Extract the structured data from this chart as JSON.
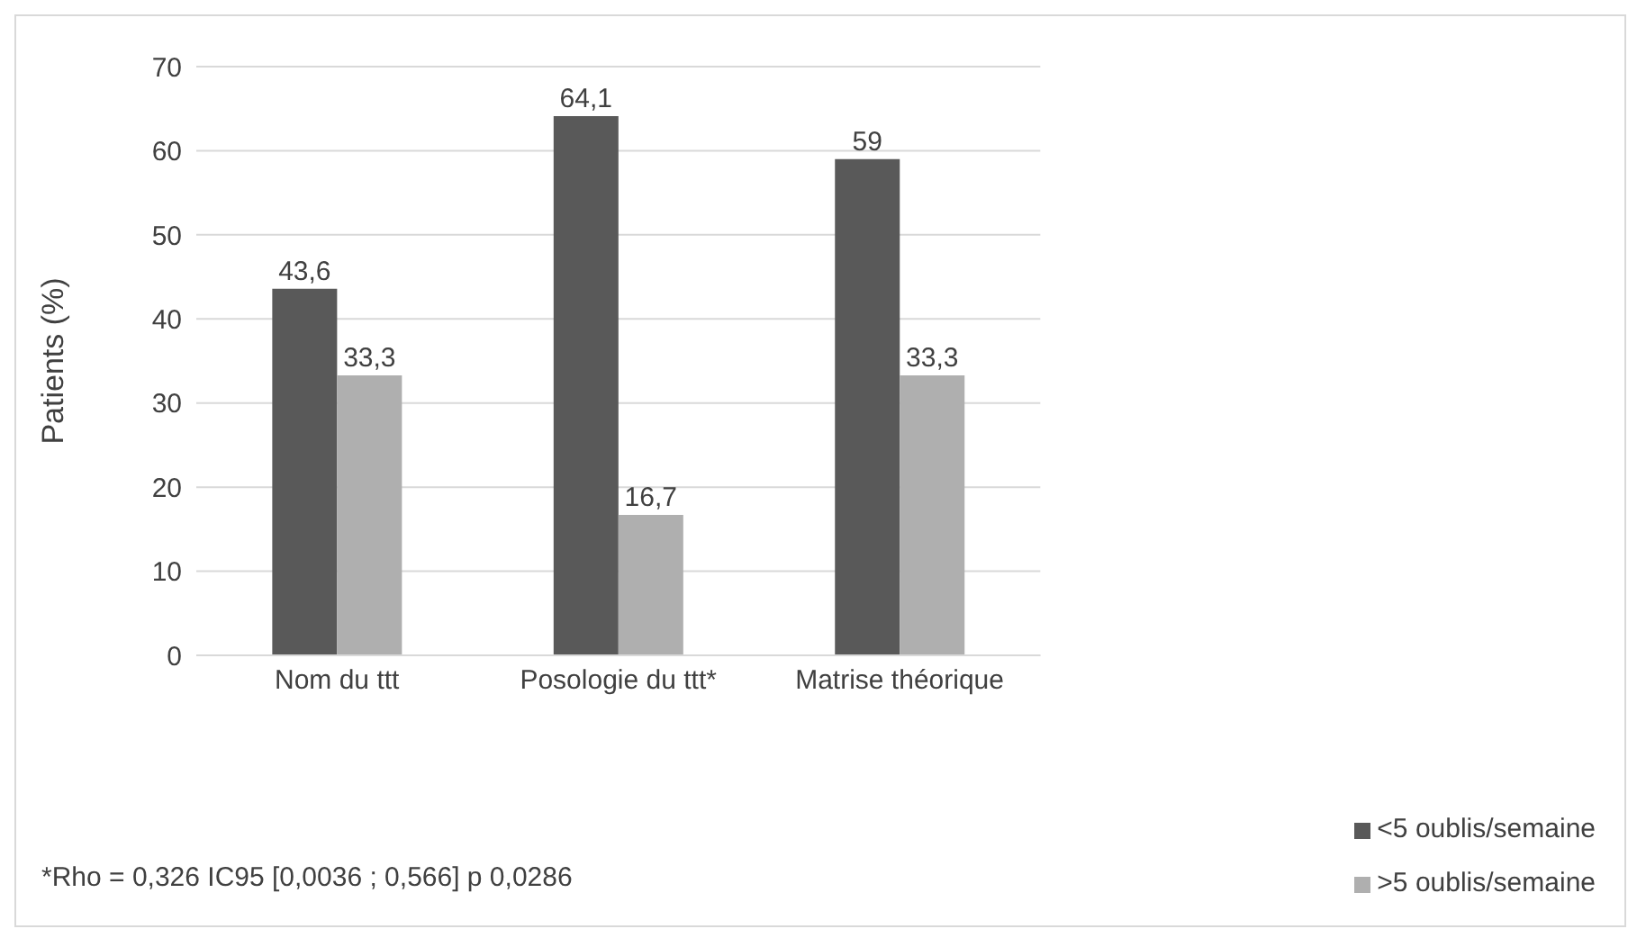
{
  "chart_data": {
    "type": "bar",
    "categories": [
      "Nom du ttt",
      "Posologie du ttt*",
      "Matrise théorique"
    ],
    "ylabel": "Patients (%)",
    "ylim": [
      0,
      70
    ],
    "yticks": [
      0,
      10,
      20,
      30,
      40,
      50,
      60,
      70
    ],
    "grid": "y",
    "legend": "bottom right",
    "series": [
      {
        "name": "<5 oublis/semaine",
        "color": "#595959",
        "values": [
          43.6,
          64.1,
          59
        ],
        "value_labels": [
          "43,6",
          "64,1",
          "59"
        ]
      },
      {
        "name": ">5 oublis/semaine",
        "color": "#afafaf",
        "values": [
          33.3,
          16.7,
          33.3
        ],
        "value_labels": [
          "33,3",
          "16,7",
          "33,3"
        ]
      }
    ],
    "annotations": [
      "*Rho = 0,326 IC95 [0,0036 ; 0,566] p 0,0286"
    ]
  }
}
